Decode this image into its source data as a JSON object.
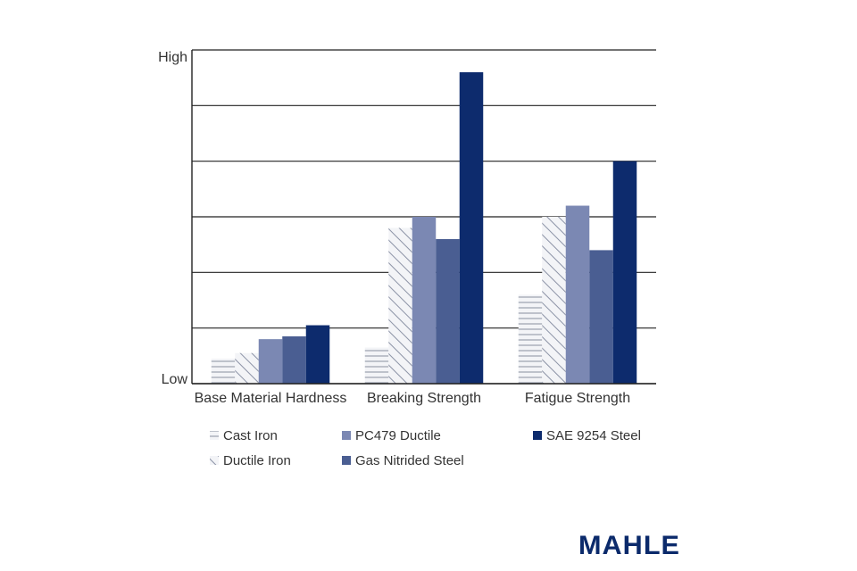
{
  "chart_data": {
    "type": "bar",
    "categories": [
      "Base Material Hardness",
      "Breaking Strength",
      "Fatigue Strength"
    ],
    "ylim": [
      0,
      6
    ],
    "ytick_labels": {
      "top": "High",
      "bottom": "Low"
    },
    "grid": true,
    "legend_position": "bottom",
    "series": [
      {
        "name": "Cast Iron",
        "values": [
          0.45,
          0.65,
          1.6
        ],
        "color": "#9aa0ae",
        "fill": "hlines"
      },
      {
        "name": "Ductile Iron",
        "values": [
          0.55,
          2.8,
          3.0
        ],
        "color": "#8c93a6",
        "fill": "diag"
      },
      {
        "name": "PC479 Ductile",
        "values": [
          0.8,
          3.0,
          3.2
        ],
        "color": "#7b88b3",
        "fill": "solid"
      },
      {
        "name": "Gas Nitrided Steel",
        "values": [
          0.85,
          2.6,
          2.4
        ],
        "color": "#4a5e92",
        "fill": "solid"
      },
      {
        "name": "SAE 9254 Steel",
        "values": [
          1.05,
          5.6,
          4.0
        ],
        "color": "#0d2b6d",
        "fill": "solid"
      }
    ]
  },
  "brand": {
    "logo_text": "MAHLE"
  }
}
